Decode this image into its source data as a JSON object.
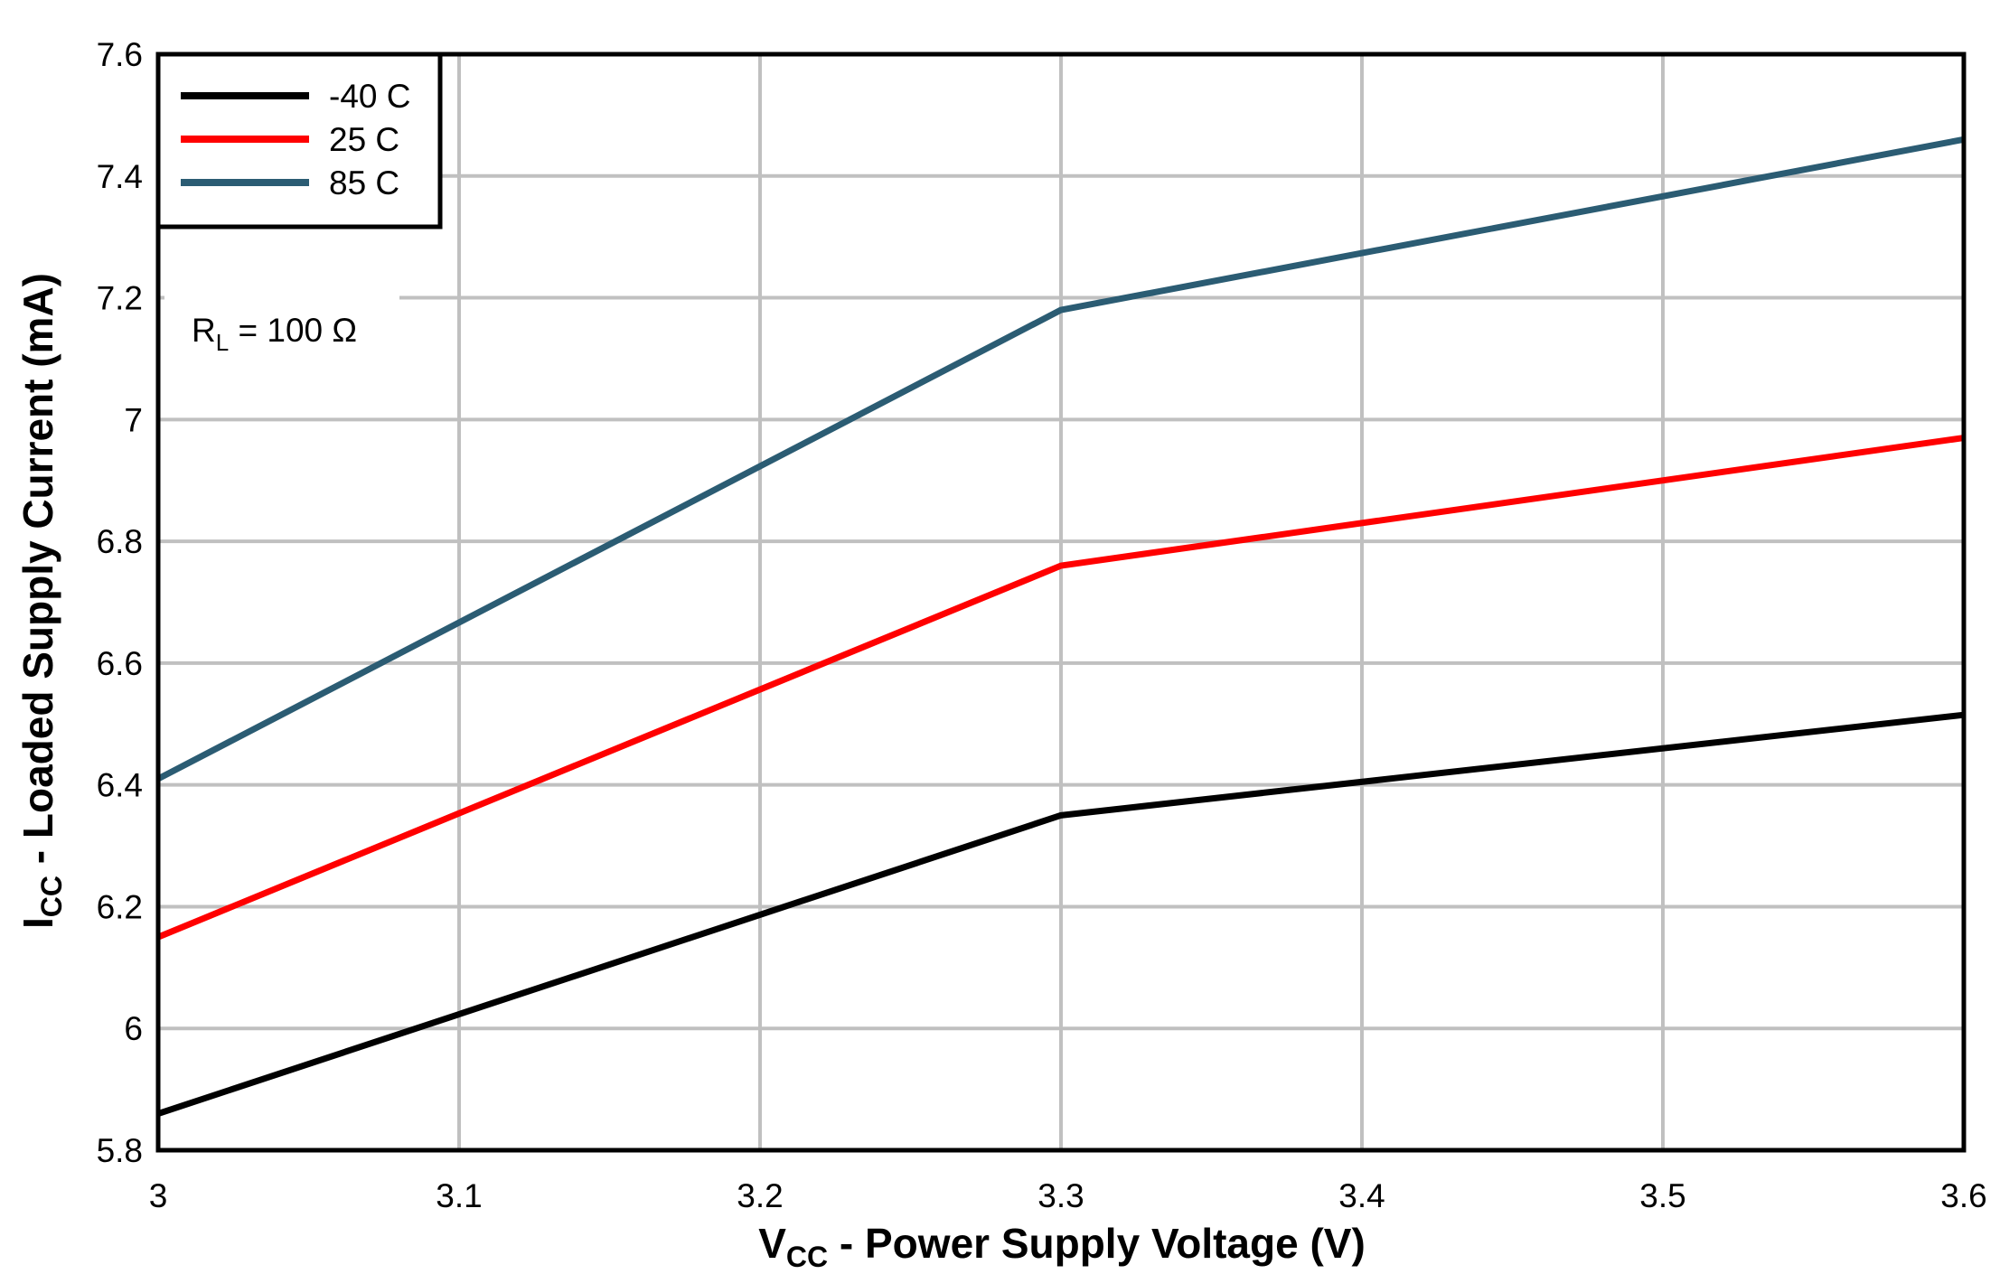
{
  "chart_data": {
    "type": "line",
    "xlabel": {
      "main": "V",
      "sub": "CC",
      "rest": " - Power Supply Voltage (V)"
    },
    "ylabel": {
      "main": "I",
      "sub": "CC",
      "rest": " - Loaded Supply Current (mA)"
    },
    "xlim": [
      3,
      3.6
    ],
    "ylim": [
      5.8,
      7.6
    ],
    "xticks": [
      "3",
      "3.1",
      "3.2",
      "3.3",
      "3.4",
      "3.5",
      "3.6"
    ],
    "yticks": [
      "5.8",
      "6",
      "6.2",
      "6.4",
      "6.6",
      "6.8",
      "7",
      "7.2",
      "7.4",
      "7.6"
    ],
    "grid": true,
    "legend_position": "top-left",
    "annotation": {
      "main": "R",
      "sub": "L",
      "rest": " = 100 Ω"
    },
    "x": [
      3.0,
      3.3,
      3.6
    ],
    "series": [
      {
        "name": "-40 C",
        "color": "#000000",
        "values": [
          5.86,
          6.35,
          6.515
        ]
      },
      {
        "name": "25 C",
        "color": "#ff0000",
        "values": [
          6.15,
          6.76,
          6.97
        ]
      },
      {
        "name": "85 C",
        "color": "#2b5c73",
        "values": [
          6.41,
          7.18,
          7.46
        ]
      }
    ]
  }
}
